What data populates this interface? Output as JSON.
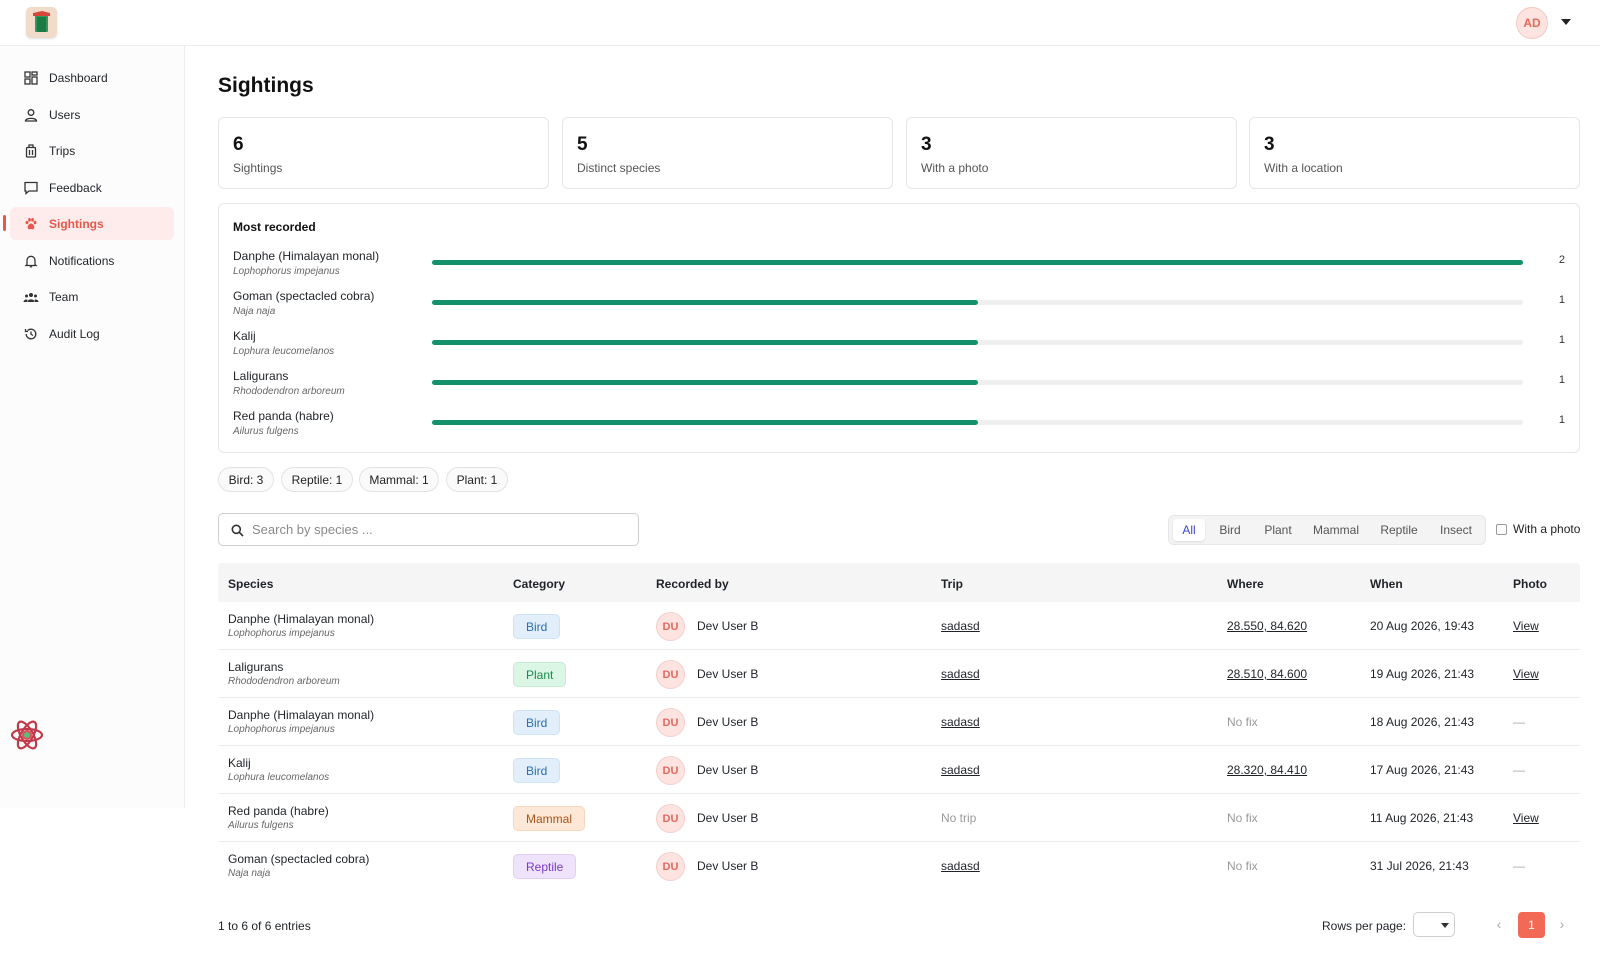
{
  "header": {
    "user_initials": "AD"
  },
  "sidebar": {
    "items": [
      {
        "label": "Dashboard",
        "icon": "dashboard-icon"
      },
      {
        "label": "Users",
        "icon": "user-icon"
      },
      {
        "label": "Trips",
        "icon": "luggage-icon"
      },
      {
        "label": "Feedback",
        "icon": "chat-icon"
      },
      {
        "label": "Sightings",
        "icon": "paw-icon",
        "active": true
      },
      {
        "label": "Notifications",
        "icon": "bell-icon"
      },
      {
        "label": "Team",
        "icon": "team-icon"
      },
      {
        "label": "Audit Log",
        "icon": "history-icon"
      }
    ]
  },
  "page": {
    "title": "Sightings"
  },
  "stats": [
    {
      "value": "6",
      "label": "Sightings"
    },
    {
      "value": "5",
      "label": "Distinct species"
    },
    {
      "value": "3",
      "label": "With a photo"
    },
    {
      "value": "3",
      "label": "With a location"
    }
  ],
  "most_recorded": {
    "title": "Most recorded",
    "items": [
      {
        "name": "Danphe (Himalayan monal)",
        "scientific": "Lophophorus impejanus",
        "count": "2",
        "fraction": 1.0
      },
      {
        "name": "Goman (spectacled cobra)",
        "scientific": "Naja naja",
        "count": "1",
        "fraction": 0.5
      },
      {
        "name": "Kalij",
        "scientific": "Lophura leucomelanos",
        "count": "1",
        "fraction": 0.5
      },
      {
        "name": "Laligurans",
        "scientific": "Rhododendron arboreum",
        "count": "1",
        "fraction": 0.5
      },
      {
        "name": "Red panda (habre)",
        "scientific": "Ailurus fulgens",
        "count": "1",
        "fraction": 0.5
      }
    ]
  },
  "category_chips": [
    "Bird: 3",
    "Reptile: 1",
    "Mammal: 1",
    "Plant: 1"
  ],
  "search": {
    "placeholder": "Search by species ...",
    "value": ""
  },
  "filters": {
    "options": [
      "All",
      "Bird",
      "Plant",
      "Mammal",
      "Reptile",
      "Insect"
    ],
    "active": "All",
    "with_photo_label": "With a photo",
    "with_photo_checked": false
  },
  "table": {
    "columns": [
      "Species",
      "Category",
      "Recorded by",
      "Trip",
      "Where",
      "When",
      "Photo"
    ],
    "rows": [
      {
        "species": "Danphe (Himalayan monal)",
        "scientific": "Lophophorus impejanus",
        "category": "Bird",
        "initials": "DU",
        "recorded_by": "Dev User B",
        "trip": "sadasd",
        "where": "28.550, 84.620",
        "when": "20 Aug 2026, 19:43",
        "photo": "View"
      },
      {
        "species": "Laligurans",
        "scientific": "Rhododendron arboreum",
        "category": "Plant",
        "initials": "DU",
        "recorded_by": "Dev User B",
        "trip": "sadasd",
        "where": "28.510, 84.600",
        "when": "19 Aug 2026, 21:43",
        "photo": "View"
      },
      {
        "species": "Danphe (Himalayan monal)",
        "scientific": "Lophophorus impejanus",
        "category": "Bird",
        "initials": "DU",
        "recorded_by": "Dev User B",
        "trip": "sadasd",
        "where": "No fix",
        "when": "18 Aug 2026, 21:43",
        "photo": "—"
      },
      {
        "species": "Kalij",
        "scientific": "Lophura leucomelanos",
        "category": "Bird",
        "initials": "DU",
        "recorded_by": "Dev User B",
        "trip": "sadasd",
        "where": "28.320, 84.410",
        "when": "17 Aug 2026, 21:43",
        "photo": "—"
      },
      {
        "species": "Red panda (habre)",
        "scientific": "Ailurus fulgens",
        "category": "Mammal",
        "initials": "DU",
        "recorded_by": "Dev User B",
        "trip": "No trip",
        "where": "No fix",
        "when": "11 Aug 2026, 21:43",
        "photo": "View"
      },
      {
        "species": "Goman (spectacled cobra)",
        "scientific": "Naja naja",
        "category": "Reptile",
        "initials": "DU",
        "recorded_by": "Dev User B",
        "trip": "sadasd",
        "where": "No fix",
        "when": "31 Jul 2026, 21:43",
        "photo": "—"
      }
    ]
  },
  "pagination": {
    "entries_text": "1 to 6 of 6 entries",
    "rows_per_page_label": "Rows per page:",
    "current_page": "1",
    "prev_icon": "chevron-left-icon",
    "next_icon": "chevron-right-icon"
  },
  "colors": {
    "accent": "#e8584a",
    "bar": "#13916b",
    "page_active": "#f26a55"
  }
}
